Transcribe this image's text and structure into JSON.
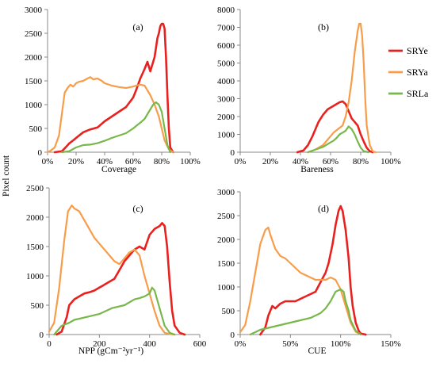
{
  "figure": {
    "ylabel": "Pixel count",
    "legend": [
      {
        "name": "SRYe",
        "color": "#e8211f"
      },
      {
        "name": "SRYa",
        "color": "#f79d4a"
      },
      {
        "name": "SRLa",
        "color": "#78b84a"
      }
    ]
  },
  "chart_data": [
    {
      "type": "line",
      "panel_label": "(a)",
      "xlabel": "Coverage",
      "xlim": [
        0,
        100
      ],
      "ylim": [
        0,
        3000
      ],
      "xticks": [
        0,
        20,
        40,
        60,
        80,
        100
      ],
      "xtick_labels": [
        "0%",
        "20%",
        "40%",
        "60%",
        "80%",
        "100%"
      ],
      "yticks": [
        0,
        500,
        1000,
        1500,
        2000,
        2500,
        3000
      ],
      "ytick_labels": [
        "0",
        "500",
        "1000",
        "1500",
        "2000",
        "2500",
        "3000"
      ],
      "series": [
        {
          "name": "SRYe",
          "color": "#e8211f",
          "x": [
            5,
            10,
            12,
            15,
            18,
            20,
            25,
            30,
            35,
            40,
            45,
            50,
            55,
            60,
            62,
            65,
            68,
            70,
            72,
            75,
            77,
            78,
            79,
            80,
            81,
            82,
            83,
            84,
            85,
            86,
            88
          ],
          "y": [
            0,
            20,
            80,
            180,
            250,
            300,
            420,
            480,
            520,
            650,
            750,
            850,
            950,
            1150,
            1300,
            1550,
            1750,
            1900,
            1700,
            2000,
            2400,
            2500,
            2650,
            2700,
            2700,
            2600,
            2000,
            1200,
            500,
            100,
            0
          ]
        },
        {
          "name": "SRYa",
          "color": "#f79d4a",
          "x": [
            0,
            2,
            5,
            8,
            10,
            12,
            14,
            16,
            18,
            20,
            22,
            25,
            28,
            30,
            32,
            35,
            38,
            40,
            45,
            50,
            55,
            60,
            62,
            65,
            68,
            70,
            72,
            75,
            78,
            80,
            82,
            85,
            88
          ],
          "y": [
            0,
            30,
            100,
            350,
            800,
            1250,
            1350,
            1420,
            1380,
            1450,
            1480,
            1500,
            1550,
            1580,
            1530,
            1550,
            1500,
            1450,
            1400,
            1370,
            1350,
            1380,
            1400,
            1420,
            1400,
            1300,
            1200,
            1000,
            750,
            500,
            250,
            60,
            0
          ]
        },
        {
          "name": "SRLa",
          "color": "#78b84a",
          "x": [
            10,
            15,
            20,
            25,
            30,
            35,
            40,
            45,
            50,
            55,
            60,
            62,
            65,
            68,
            70,
            72,
            74,
            76,
            78,
            80,
            82,
            84,
            86
          ],
          "y": [
            0,
            20,
            100,
            150,
            160,
            190,
            240,
            300,
            350,
            400,
            500,
            550,
            620,
            700,
            800,
            900,
            1000,
            1050,
            1000,
            850,
            500,
            150,
            0
          ]
        }
      ]
    },
    {
      "type": "line",
      "panel_label": "(b)",
      "xlabel": "Bareness",
      "xlim": [
        0,
        100
      ],
      "ylim": [
        0,
        8000
      ],
      "xticks": [
        0,
        20,
        40,
        60,
        80,
        100
      ],
      "xtick_labels": [
        "0%",
        "20%",
        "40%",
        "60%",
        "80%",
        "100%"
      ],
      "yticks": [
        0,
        1000,
        2000,
        3000,
        4000,
        5000,
        6000,
        7000,
        8000
      ],
      "ytick_labels": [
        "0",
        "1000",
        "2000",
        "3000",
        "4000",
        "5000",
        "6000",
        "7000",
        "8000"
      ],
      "series": [
        {
          "name": "SRYe",
          "color": "#e8211f",
          "x": [
            38,
            42,
            45,
            48,
            50,
            52,
            55,
            58,
            60,
            62,
            64,
            66,
            68,
            70,
            72,
            74,
            76,
            78,
            80,
            82,
            84,
            86,
            88
          ],
          "y": [
            0,
            100,
            400,
            900,
            1300,
            1700,
            2100,
            2400,
            2500,
            2600,
            2700,
            2800,
            2850,
            2700,
            2300,
            1900,
            1700,
            1500,
            1000,
            600,
            250,
            60,
            0
          ]
        },
        {
          "name": "SRYa",
          "color": "#f79d4a",
          "x": [
            45,
            50,
            55,
            60,
            62,
            65,
            68,
            70,
            72,
            74,
            75,
            76,
            77,
            78,
            79,
            80,
            81,
            82,
            83,
            84,
            86,
            88,
            90
          ],
          "y": [
            0,
            150,
            400,
            900,
            1100,
            1300,
            1500,
            2000,
            2800,
            4000,
            4800,
            5600,
            6200,
            6800,
            7200,
            7200,
            6500,
            5000,
            3000,
            1500,
            400,
            50,
            0
          ]
        },
        {
          "name": "SRLa",
          "color": "#78b84a",
          "x": [
            45,
            50,
            55,
            60,
            62,
            64,
            66,
            68,
            70,
            72,
            74,
            76,
            78,
            80,
            82,
            85
          ],
          "y": [
            0,
            150,
            300,
            550,
            650,
            800,
            1000,
            1100,
            1200,
            1450,
            1300,
            1000,
            600,
            250,
            60,
            0
          ]
        }
      ]
    },
    {
      "type": "line",
      "panel_label": "(c)",
      "xlabel": "NPP  (gCm⁻²yr⁻¹)",
      "xlim": [
        0,
        600
      ],
      "ylim": [
        0,
        2500
      ],
      "xticks": [
        0,
        200,
        400,
        600
      ],
      "xtick_labels": [
        "0",
        "200",
        "400",
        "600"
      ],
      "yticks": [
        0,
        500,
        1000,
        1500,
        2000,
        2500
      ],
      "ytick_labels": [
        "0",
        "500",
        "1000",
        "1500",
        "2000",
        "2500"
      ],
      "series": [
        {
          "name": "SRYe",
          "color": "#e8211f",
          "x": [
            30,
            50,
            70,
            80,
            100,
            120,
            140,
            160,
            180,
            200,
            220,
            240,
            260,
            280,
            300,
            320,
            340,
            360,
            380,
            400,
            420,
            440,
            450,
            460,
            470,
            480,
            490,
            500,
            520,
            540
          ],
          "y": [
            0,
            50,
            300,
            500,
            600,
            650,
            700,
            720,
            750,
            800,
            850,
            900,
            950,
            1100,
            1250,
            1350,
            1450,
            1500,
            1450,
            1700,
            1800,
            1850,
            1900,
            1850,
            1500,
            900,
            400,
            150,
            30,
            0
          ]
        },
        {
          "name": "SRYa",
          "color": "#f79d4a",
          "x": [
            0,
            20,
            40,
            60,
            75,
            90,
            100,
            120,
            140,
            160,
            180,
            200,
            220,
            240,
            260,
            280,
            300,
            320,
            340,
            360,
            380,
            400,
            420,
            440,
            460,
            480,
            500
          ],
          "y": [
            50,
            200,
            800,
            1600,
            2100,
            2200,
            2150,
            2100,
            1950,
            1800,
            1650,
            1550,
            1450,
            1350,
            1250,
            1200,
            1300,
            1400,
            1450,
            1350,
            1000,
            700,
            400,
            150,
            30,
            10,
            0
          ]
        },
        {
          "name": "SRLa",
          "color": "#78b84a",
          "x": [
            20,
            50,
            80,
            100,
            150,
            200,
            250,
            300,
            340,
            360,
            380,
            400,
            410,
            420,
            440,
            460,
            480,
            500
          ],
          "y": [
            0,
            150,
            200,
            250,
            300,
            350,
            450,
            500,
            600,
            620,
            650,
            700,
            800,
            750,
            450,
            150,
            30,
            0
          ]
        }
      ]
    },
    {
      "type": "line",
      "panel_label": "(d)",
      "xlabel": "CUE",
      "xlim": [
        0,
        150
      ],
      "ylim": [
        0,
        3000
      ],
      "xticks": [
        0,
        50,
        100,
        150
      ],
      "xtick_labels": [
        "0%",
        "50%",
        "100%",
        "150%"
      ],
      "yticks": [
        0,
        500,
        1000,
        1500,
        2000,
        2500,
        3000
      ],
      "ytick_labels": [
        "0",
        "500",
        "1000",
        "1500",
        "2000",
        "2500",
        "3000"
      ],
      "series": [
        {
          "name": "SRYe",
          "color": "#e8211f",
          "x": [
            20,
            25,
            28,
            32,
            35,
            40,
            45,
            50,
            55,
            60,
            65,
            70,
            75,
            80,
            85,
            88,
            92,
            95,
            98,
            100,
            102,
            105,
            108,
            110,
            112,
            115,
            118,
            120,
            125
          ],
          "y": [
            0,
            150,
            400,
            600,
            550,
            650,
            700,
            700,
            700,
            750,
            800,
            850,
            900,
            1100,
            1300,
            1500,
            1900,
            2300,
            2600,
            2700,
            2600,
            2200,
            1600,
            1000,
            600,
            250,
            80,
            20,
            0
          ]
        },
        {
          "name": "SRYa",
          "color": "#f79d4a",
          "x": [
            0,
            5,
            10,
            15,
            20,
            25,
            28,
            30,
            35,
            40,
            45,
            50,
            55,
            60,
            65,
            70,
            75,
            80,
            85,
            90,
            95,
            100,
            105,
            110,
            115,
            120
          ],
          "y": [
            50,
            200,
            700,
            1300,
            1900,
            2200,
            2250,
            2100,
            1800,
            1650,
            1600,
            1500,
            1400,
            1300,
            1250,
            1200,
            1150,
            1150,
            1150,
            1200,
            1150,
            950,
            600,
            250,
            60,
            0
          ]
        },
        {
          "name": "SRLa",
          "color": "#78b84a",
          "x": [
            10,
            20,
            30,
            40,
            50,
            60,
            70,
            80,
            85,
            90,
            95,
            100,
            103,
            105,
            108,
            110,
            115,
            120
          ],
          "y": [
            0,
            100,
            150,
            200,
            250,
            300,
            350,
            450,
            550,
            700,
            900,
            950,
            900,
            700,
            500,
            300,
            80,
            0
          ]
        }
      ]
    }
  ]
}
